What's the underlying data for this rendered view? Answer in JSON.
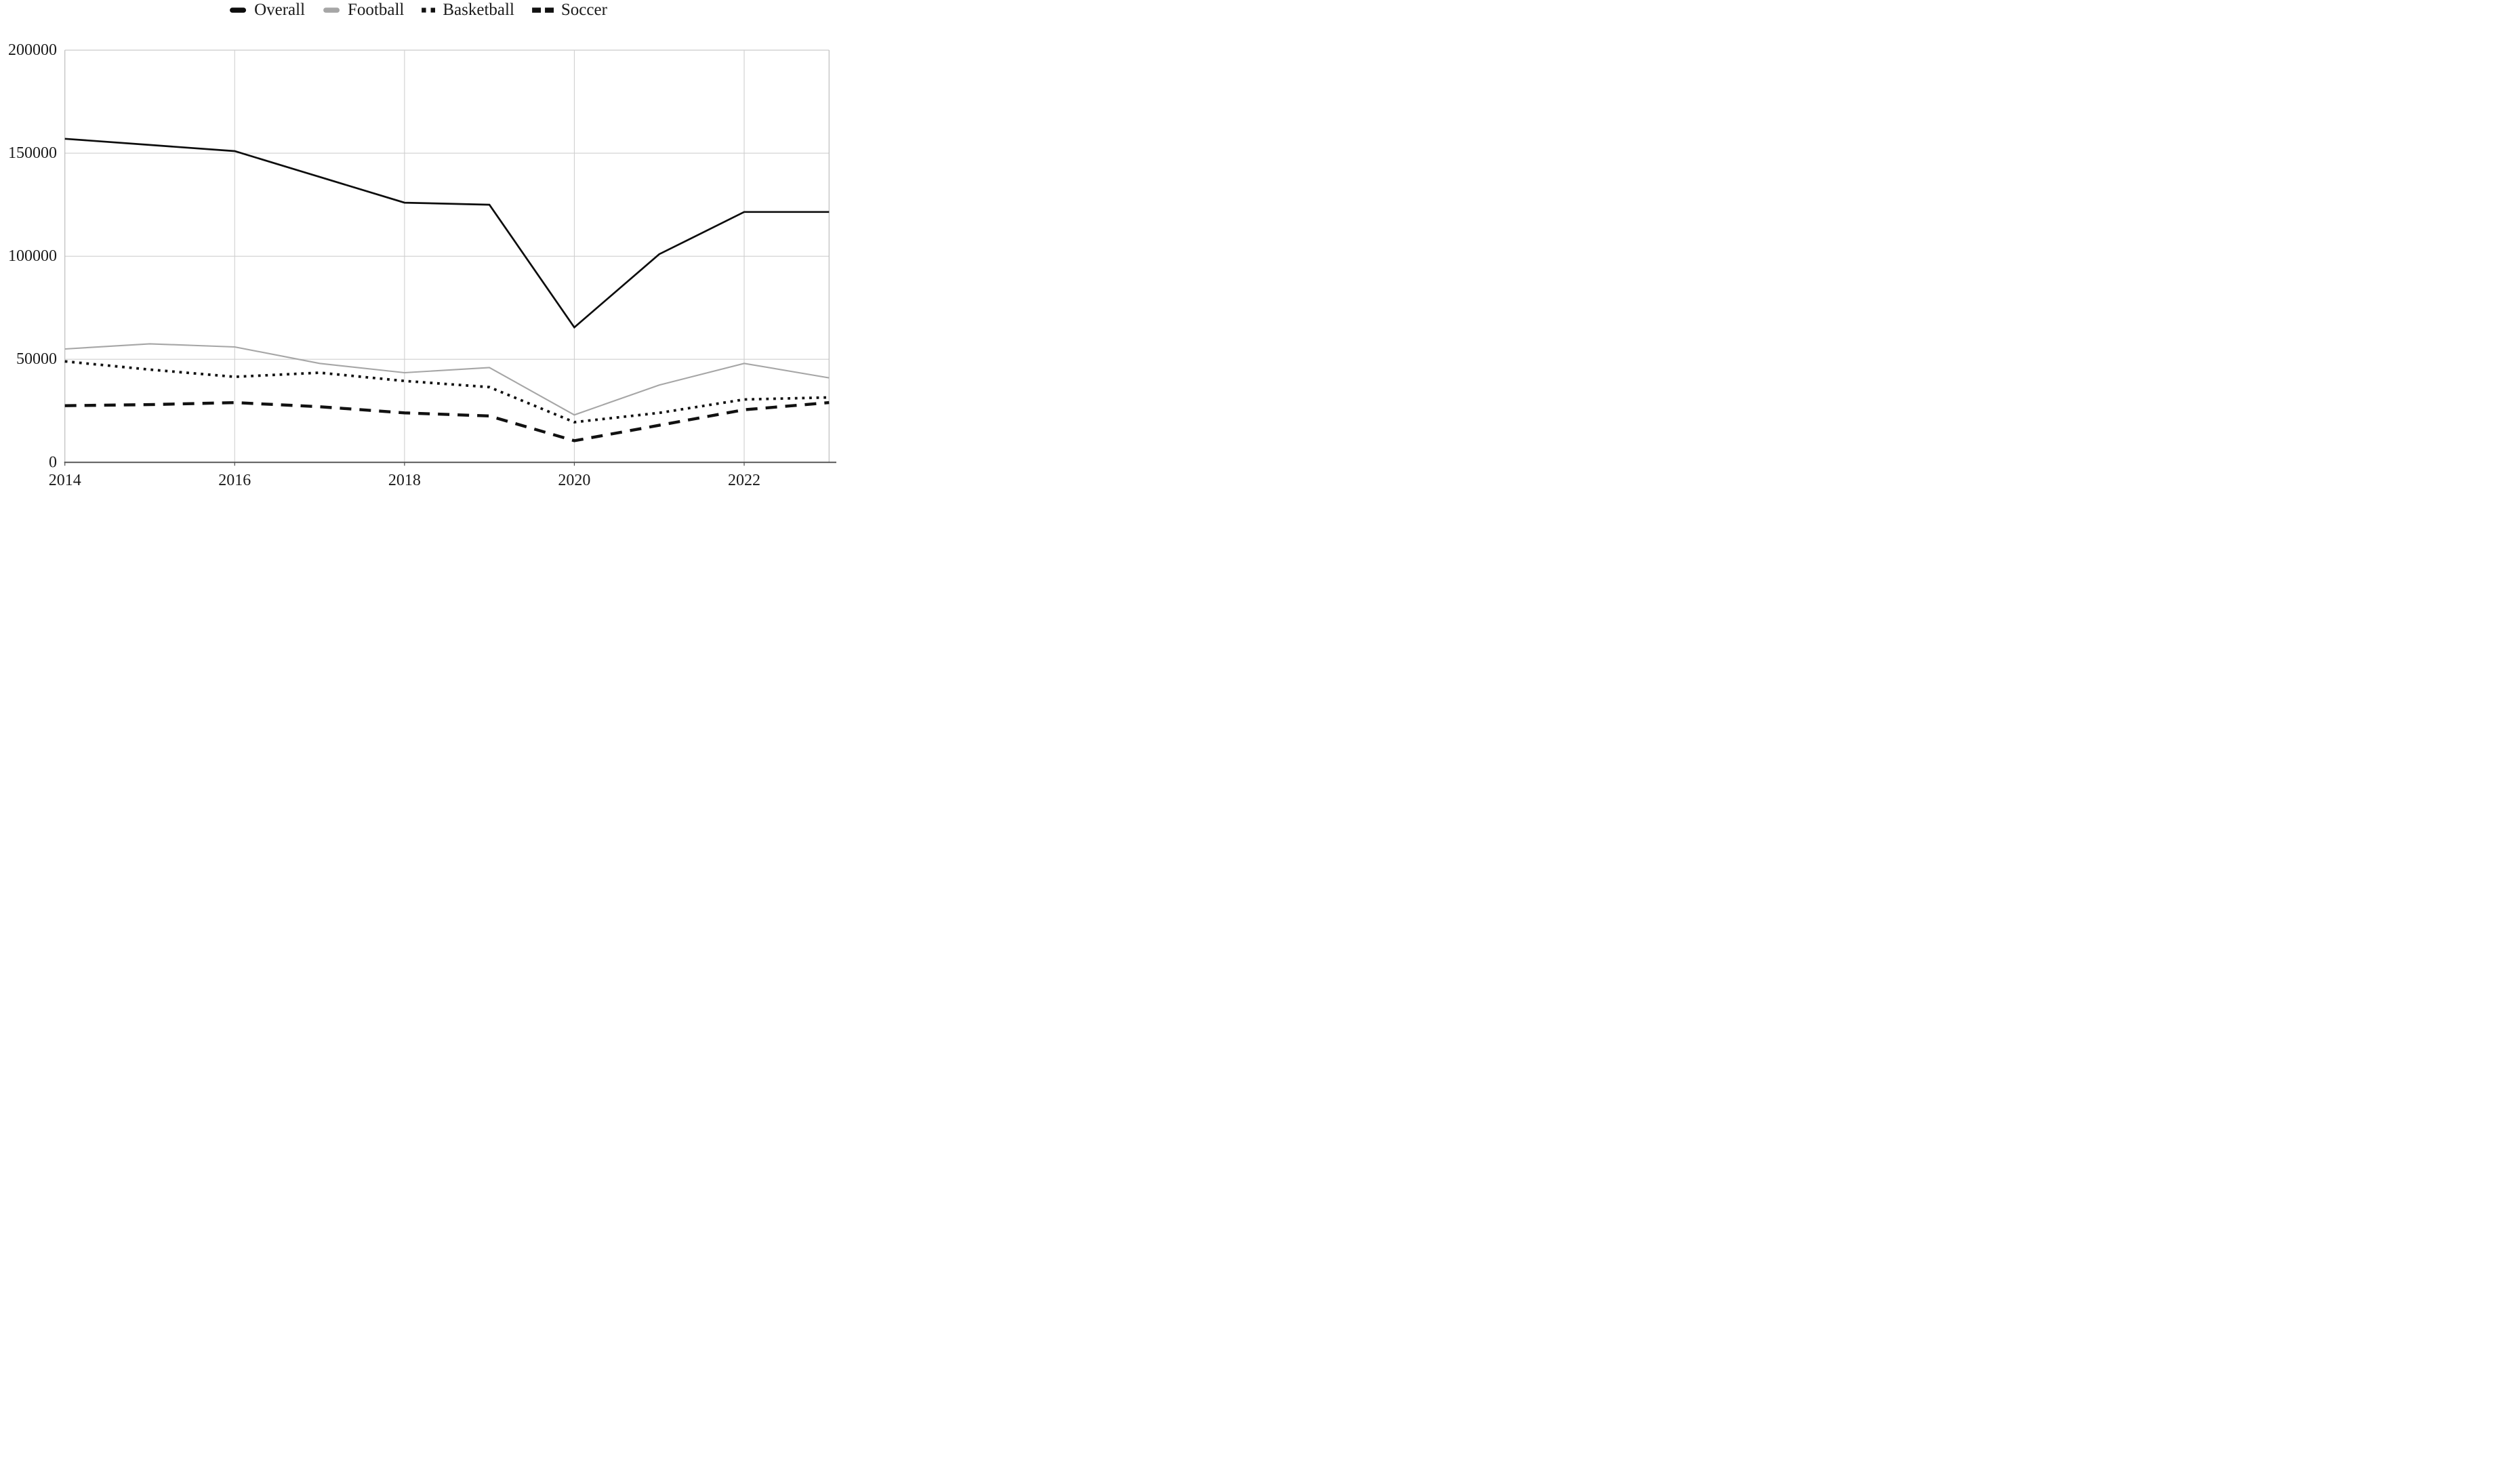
{
  "colors": {
    "background": "#ffffff",
    "grid": "#cfcfcf",
    "frame": "#bdbdbd",
    "axis": "#4d4d4d",
    "text": "#1a1a1a",
    "overall": "#0d0d0d",
    "football": "#a6a6a6",
    "basketball": "#111111",
    "soccer": "#111111"
  },
  "legend": {
    "items": [
      {
        "label": "Overall",
        "swatch": "solid-thick"
      },
      {
        "label": "Football",
        "swatch": "solid"
      },
      {
        "label": "Basketball",
        "swatch": "dotted"
      },
      {
        "label": "Soccer",
        "swatch": "dashed"
      }
    ]
  },
  "chart_data": {
    "type": "line",
    "title": "",
    "xlabel": "",
    "ylabel": "",
    "legend_position": "top",
    "grid": true,
    "x": [
      2014,
      2015,
      2016,
      2017,
      2018,
      2019,
      2020,
      2021,
      2022,
      2023
    ],
    "series": [
      {
        "name": "Overall",
        "color": "#0d0d0d",
        "width": 2.7,
        "dash": "",
        "values": [
          157000,
          154000,
          151000,
          138500,
          126000,
          125000,
          65500,
          101000,
          121500,
          121500
        ]
      },
      {
        "name": "Football",
        "color": "#a6a6a6",
        "width": 2.1,
        "dash": "",
        "values": [
          55000,
          57500,
          56000,
          48000,
          43500,
          46000,
          23000,
          37500,
          48000,
          41000
        ]
      },
      {
        "name": "Basketball",
        "color": "#111111",
        "width": 3.8,
        "dash": "3.8 6.8",
        "values": [
          49000,
          45000,
          41500,
          43500,
          39500,
          36500,
          19500,
          24000,
          30500,
          31500
        ]
      },
      {
        "name": "Soccer",
        "color": "#111111",
        "width": 4.4,
        "dash": "17 12",
        "values": [
          27500,
          28000,
          29000,
          27000,
          24000,
          22500,
          10500,
          18000,
          25500,
          29000
        ]
      }
    ],
    "ylim": [
      0,
      200000
    ],
    "yticks": [
      {
        "value": 0,
        "label": "0"
      },
      {
        "value": 50000,
        "label": "50000"
      },
      {
        "value": 100000,
        "label": "100000"
      },
      {
        "value": 150000,
        "label": "150000"
      },
      {
        "value": 200000,
        "label": "200000"
      }
    ],
    "xticks": [
      {
        "value": 2014,
        "label": "2014"
      },
      {
        "value": 2016,
        "label": "2016"
      },
      {
        "value": 2018,
        "label": "2018"
      },
      {
        "value": 2020,
        "label": "2020"
      },
      {
        "value": 2022,
        "label": "2022"
      }
    ],
    "grid_x_years": [
      2016,
      2018,
      2020,
      2022
    ]
  }
}
